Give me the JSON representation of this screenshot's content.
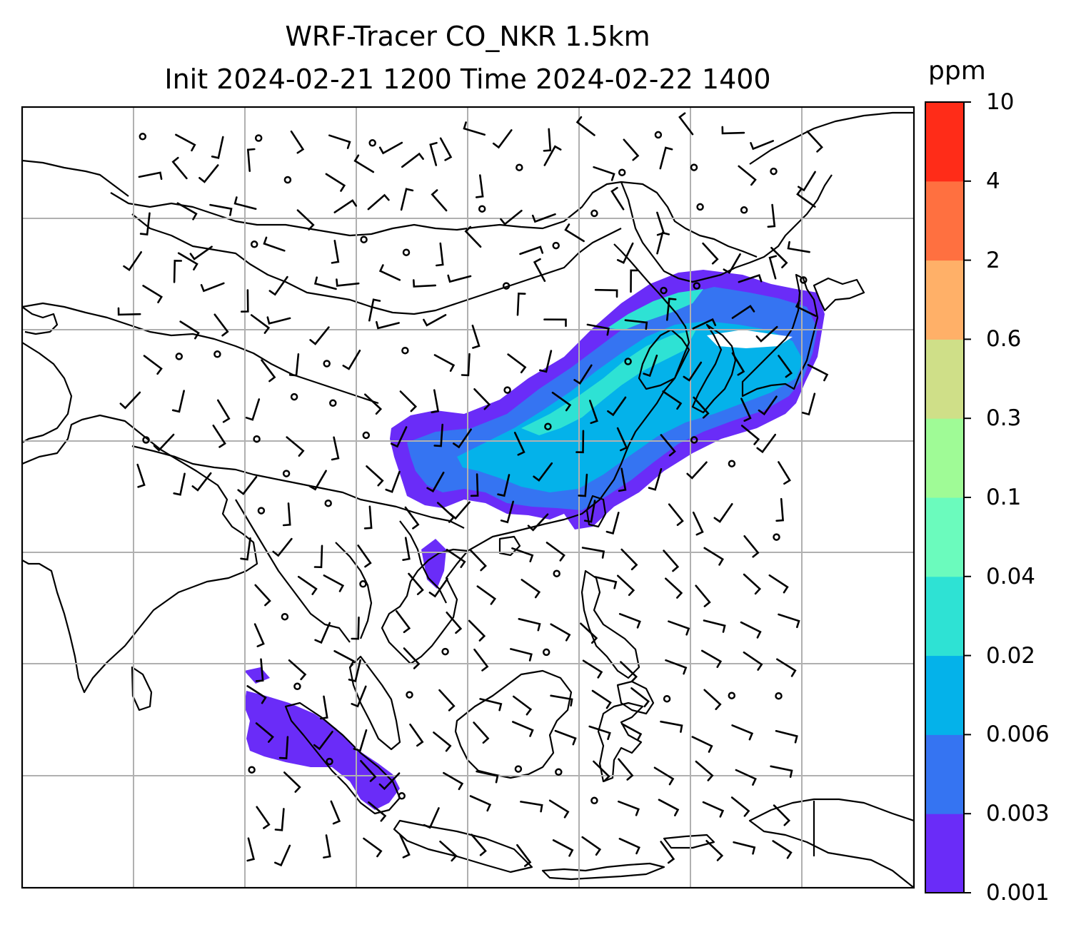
{
  "title": {
    "line1": "WRF-Tracer CO_NKR 1.5km",
    "line2": "Init 2024-02-21 1200 Time 2024-02-22 1400"
  },
  "colorbar": {
    "unit": "ppm",
    "levels": [
      "0.001",
      "0.003",
      "0.006",
      "0.02",
      "0.04",
      "0.1",
      "0.3",
      "0.6",
      "2",
      "4",
      "10"
    ],
    "colors": [
      "#6a2cf8",
      "#3574f2",
      "#04b2ea",
      "#2ee2d4",
      "#6bfbbd",
      "#9ffb96",
      "#cfdf88",
      "#ffb068",
      "#ff7040",
      "#ff2c18"
    ]
  },
  "map": {
    "gridlines": true,
    "gridline_color": "#b0b0b0",
    "coastline_color": "#000000",
    "plume_colors": {
      "faint": "#6a2cf8",
      "low": "#3574f2",
      "mid": "#04b2ea",
      "high": "#2ee2d4"
    },
    "wind_symbol": "wind-barb-icon",
    "calm_symbol": "calm-circle-icon"
  }
}
